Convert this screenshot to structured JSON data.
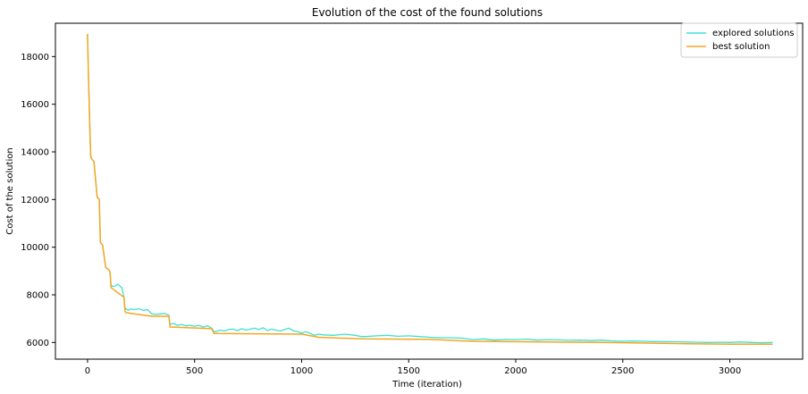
{
  "chart_data": {
    "type": "line",
    "title": "Evolution of the cost of the found solutions",
    "xlabel": "Time (iteration)",
    "ylabel": "Cost of the solution",
    "xlim": [
      -150,
      3340
    ],
    "ylim": [
      5300,
      19400
    ],
    "xticks": [
      0,
      500,
      1000,
      1500,
      2000,
      2500,
      3000
    ],
    "yticks": [
      6000,
      8000,
      10000,
      12000,
      14000,
      16000,
      18000
    ],
    "grid": false,
    "legend_position": "top-right",
    "series": [
      {
        "name": "explored solutions",
        "color": "#40e0d0",
        "x": [
          0,
          5,
          10,
          15,
          20,
          30,
          45,
          55,
          60,
          70,
          85,
          100,
          105,
          110,
          120,
          130,
          140,
          160,
          170,
          175,
          180,
          190,
          200,
          220,
          240,
          260,
          280,
          300,
          320,
          340,
          360,
          380,
          385,
          400,
          420,
          440,
          460,
          480,
          500,
          520,
          540,
          560,
          580,
          590,
          600,
          620,
          640,
          660,
          680,
          700,
          720,
          740,
          760,
          780,
          800,
          820,
          840,
          860,
          880,
          900,
          920,
          940,
          960,
          980,
          1000,
          1020,
          1040,
          1060,
          1080,
          1100,
          1150,
          1200,
          1250,
          1280,
          1300,
          1350,
          1400,
          1450,
          1500,
          1550,
          1600,
          1650,
          1700,
          1750,
          1800,
          1850,
          1900,
          1950,
          2000,
          2050,
          2100,
          2150,
          2200,
          2250,
          2300,
          2350,
          2400,
          2450,
          2500,
          2550,
          2600,
          2650,
          2700,
          2750,
          2800,
          2850,
          2900,
          2950,
          3000,
          3050,
          3100,
          3150,
          3200
        ],
        "values": [
          18950,
          17000,
          15300,
          13800,
          13700,
          13600,
          12100,
          12000,
          10200,
          10100,
          9150,
          9050,
          8950,
          8400,
          8350,
          8380,
          8450,
          8300,
          7900,
          7400,
          7420,
          7350,
          7400,
          7380,
          7420,
          7350,
          7380,
          7200,
          7180,
          7200,
          7220,
          7150,
          6750,
          6800,
          6720,
          6750,
          6700,
          6720,
          6680,
          6720,
          6650,
          6700,
          6600,
          6450,
          6450,
          6520,
          6480,
          6550,
          6560,
          6500,
          6580,
          6520,
          6560,
          6600,
          6540,
          6620,
          6500,
          6560,
          6520,
          6480,
          6540,
          6600,
          6500,
          6450,
          6400,
          6450,
          6380,
          6300,
          6350,
          6320,
          6300,
          6350,
          6300,
          6250,
          6250,
          6280,
          6300,
          6260,
          6280,
          6250,
          6220,
          6200,
          6200,
          6180,
          6120,
          6150,
          6100,
          6130,
          6120,
          6140,
          6100,
          6120,
          6110,
          6090,
          6100,
          6080,
          6100,
          6070,
          6050,
          6060,
          6050,
          6040,
          6030,
          6030,
          6020,
          6010,
          6000,
          6010,
          6000,
          6020,
          6000,
          5990,
          6000
        ]
      },
      {
        "name": "best solution",
        "color": "#f5a623",
        "x": [
          0,
          5,
          10,
          15,
          20,
          30,
          45,
          55,
          60,
          70,
          85,
          100,
          105,
          110,
          170,
          175,
          180,
          300,
          380,
          385,
          580,
          590,
          1000,
          1080,
          1280,
          1600,
          1800,
          2400,
          2800,
          3000,
          3200
        ],
        "values": [
          18950,
          17000,
          15300,
          13800,
          13700,
          13600,
          12100,
          12000,
          10200,
          10100,
          9150,
          9050,
          8950,
          8300,
          7900,
          7300,
          7250,
          7100,
          7100,
          6650,
          6580,
          6380,
          6350,
          6220,
          6150,
          6130,
          6050,
          6000,
          5950,
          5930,
          5930
        ]
      }
    ]
  }
}
